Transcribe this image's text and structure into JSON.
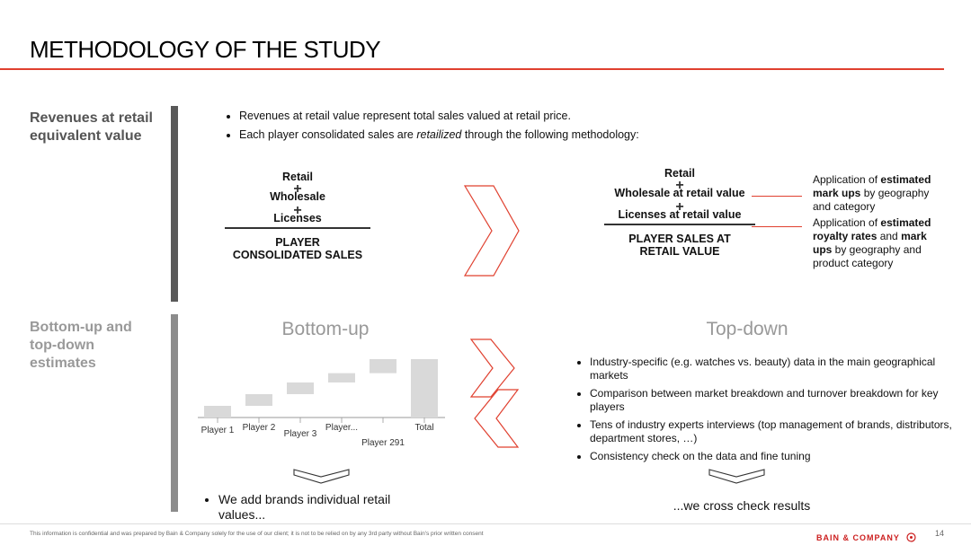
{
  "page": {
    "title": "METHODOLOGY OF THE STUDY",
    "page_number": "14"
  },
  "section1": {
    "label": "Revenues at retail equivalent value",
    "bullet1": "Revenues at retail value represent total sales valued at retail price.",
    "bullet2_pre": "Each player consolidated sales are ",
    "bullet2_em": "retailized",
    "bullet2_post": " through the following methodology:",
    "left_stack": {
      "item1": "Retail",
      "item2": "Wholesale",
      "item3": "Licenses",
      "total_line1": "PLAYER",
      "total_line2": "CONSOLIDATED SALES"
    },
    "right_stack": {
      "item1": "Retail",
      "item2": "Wholesale at retail value",
      "item3": "Licenses at retail value",
      "total_line1": "PLAYER SALES AT",
      "total_line2": "RETAIL VALUE"
    },
    "note1": {
      "pre": "Application of ",
      "b1": "estimated mark ups",
      "post": " by geography and category"
    },
    "note2": {
      "pre": "Application of ",
      "b1": "estimated royalty rates",
      "mid": " and ",
      "b2": "mark ups",
      "post": " by geography and product category"
    }
  },
  "section2": {
    "label": "Bottom-up and top-down estimates",
    "bottom_up_title": "Bottom-up",
    "top_down_title": "Top-down",
    "bottom_up_result": "We add brands individual retail values...",
    "top_down_result": "...we cross check results",
    "top_down_bullets": [
      "Industry-specific (e.g. watches vs. beauty) data in the main geographical markets",
      "Comparison between market breakdown and turnover breakdown for key players",
      "Tens of industry experts interviews (top management of brands, distributors, department stores, …)",
      "Consistency check on the data and fine tuning"
    ]
  },
  "chart_data": {
    "type": "bar",
    "subtype": "waterfall",
    "categories": [
      "Player 1",
      "Player 2",
      "Player 3",
      "Player...",
      "Player 291",
      "Total"
    ],
    "values": [
      1,
      1,
      1,
      0.8,
      1.2,
      5
    ],
    "ylim": [
      0,
      5
    ],
    "color": "#d9d9d9"
  },
  "footer": {
    "disclaimer": "This information is confidential and was prepared by Bain & Company solely for the use of our client; it is not to be relied on by any 3rd party without Bain's prior written consent",
    "brand": "BAIN & COMPANY"
  },
  "colors": {
    "accent": "#e0402f",
    "dark_bar": "#595959",
    "light_bar": "#8c8c8c",
    "muted_text": "#999999"
  }
}
